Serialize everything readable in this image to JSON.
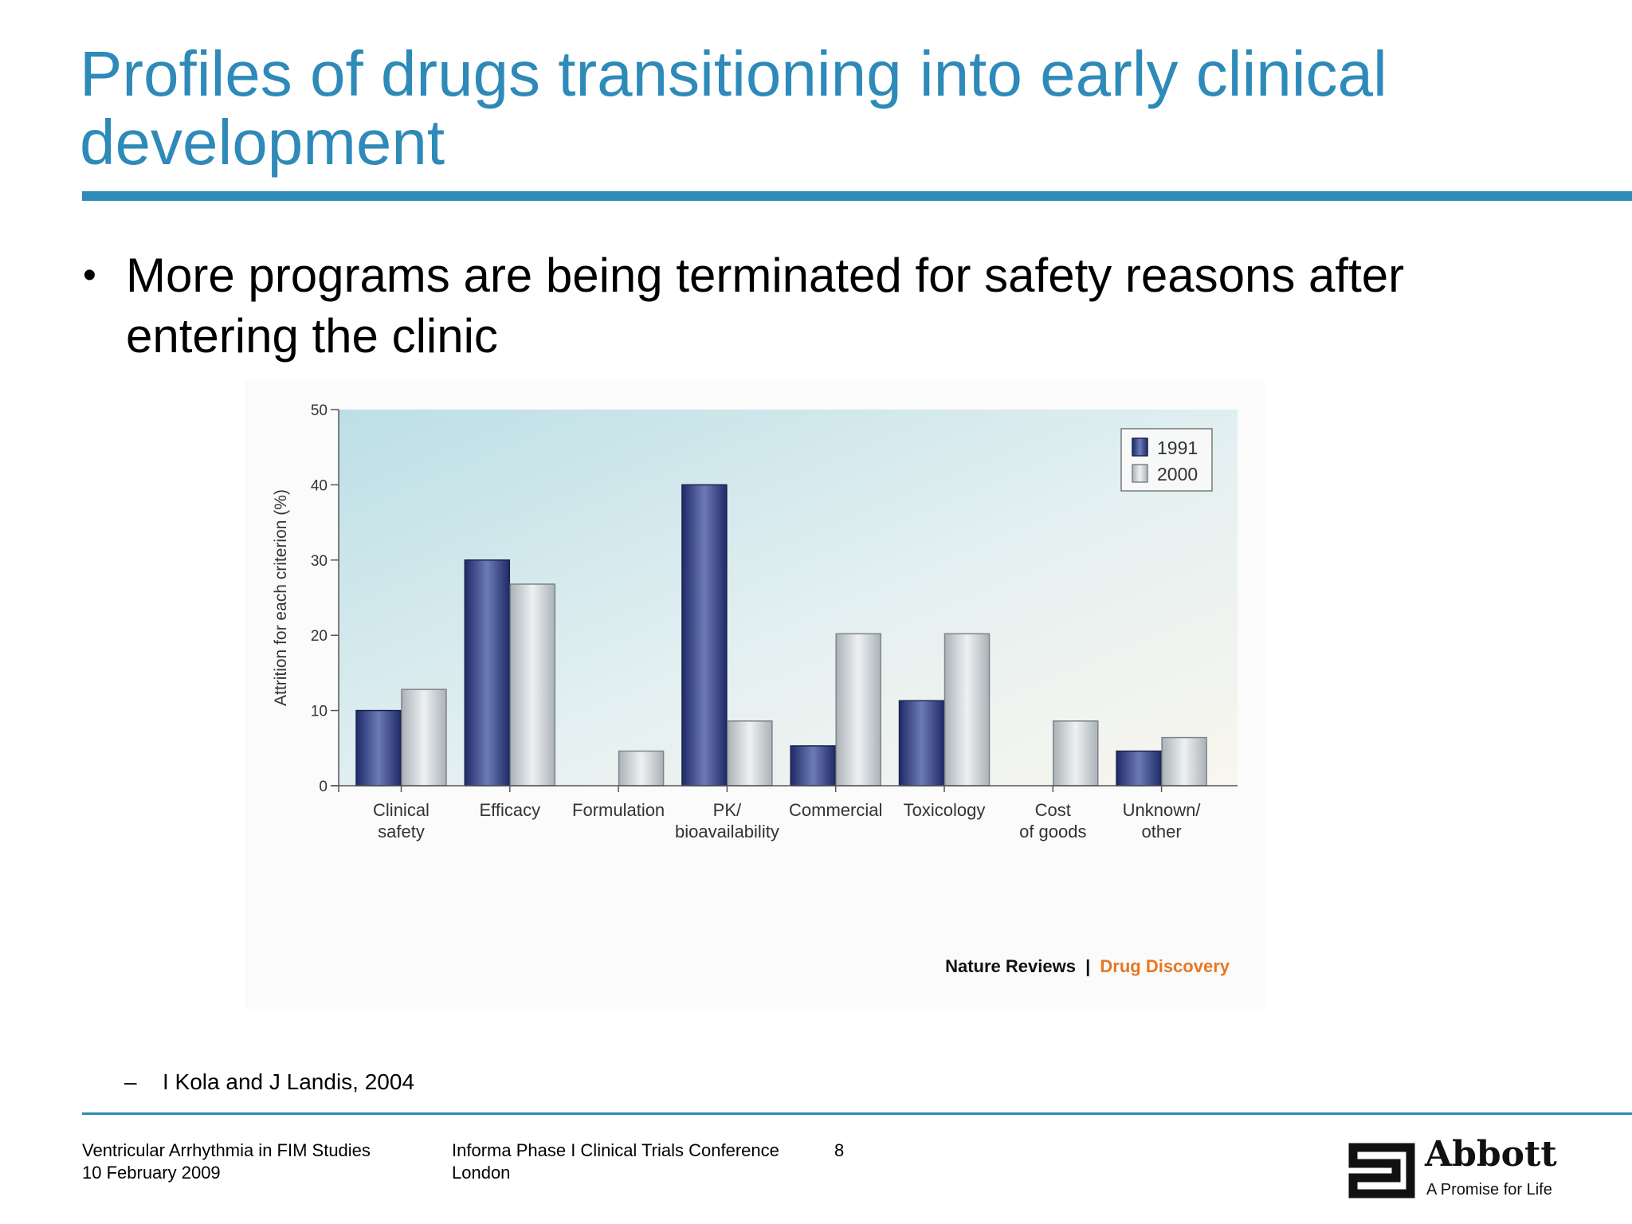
{
  "slide": {
    "title": "Profiles of drugs transitioning into early clinical development",
    "bullet": "More programs are being terminated for safety reasons after entering the clinic",
    "citation_dash": "–",
    "citation": "I Kola and J Landis, 2004"
  },
  "footer": {
    "left_line1": "Ventricular Arrhythmia in FIM Studies",
    "left_line2": "10 February 2009",
    "center_line1": "Informa Phase I Clinical Trials Conference",
    "center_line2": "London",
    "page_number": "8",
    "brand_name": "Abbott",
    "brand_tagline": "A Promise for Life"
  },
  "chart_data": {
    "type": "bar",
    "ylabel": "Attrition for each criterion (%)",
    "xlabel": "",
    "ylim": [
      0,
      50
    ],
    "yticks": [
      0,
      10,
      20,
      30,
      40,
      50
    ],
    "categories": [
      [
        "Clinical",
        "safety"
      ],
      [
        "Efficacy"
      ],
      [
        "Formulation"
      ],
      [
        "PK/",
        "bioavailability"
      ],
      [
        "Commercial"
      ],
      [
        "Toxicology"
      ],
      [
        "Cost",
        "of goods"
      ],
      [
        "Unknown/",
        "other"
      ]
    ],
    "series": [
      {
        "name": "1991",
        "values": [
          10,
          30,
          0,
          40,
          5.3,
          11.3,
          0,
          4.6
        ],
        "color": "#2c3a7e"
      },
      {
        "name": "2000",
        "values": [
          12.8,
          26.8,
          4.6,
          8.6,
          20.2,
          20.2,
          8.6,
          6.4
        ],
        "color": "#c4cacd"
      }
    ],
    "legend_position": "top-right",
    "grid": false,
    "credit_left": "Nature Reviews",
    "credit_separator": "|",
    "credit_right": "Drug Discovery"
  },
  "colors": {
    "accent": "#2e8ab8",
    "credit_orange": "#e87722"
  }
}
